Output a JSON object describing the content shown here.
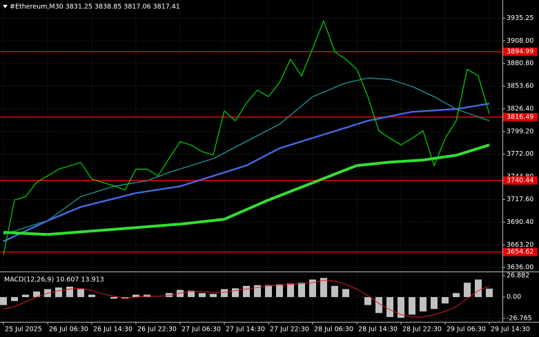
{
  "chart_data": [
    {
      "type": "line",
      "title": "#Ethereum,M30  3831.25 3838.85 3817.06 3817.41",
      "xlim": [
        -1.25,
        180.75
      ],
      "ylim": [
        3632,
        3957
      ],
      "grid": true,
      "yticks": [
        3935.25,
        {
          "value": 3908,
          "label": "3908.00"
        },
        {
          "value": 3880.8,
          "label": "3880.80"
        },
        {
          "value": 3853.6,
          "label": "3853.60"
        },
        {
          "value": 3826.4,
          "label": "3826.40"
        },
        {
          "value": 3799.2,
          "label": "3799.20"
        },
        {
          "value": 3772,
          "label": "3772.00"
        },
        {
          "value": 3744.8,
          "label": "3744.80"
        },
        {
          "value": 3717.6,
          "label": "3717.60"
        },
        {
          "value": 3690.4,
          "label": "3690.40"
        },
        {
          "value": 3663.2,
          "label": "3663.20"
        },
        {
          "value": 3636,
          "label": "3636.00"
        }
      ],
      "levels": [
        3894.99,
        3816.49,
        3740.44,
        3654.62
      ],
      "level_color": "#e00000",
      "series": [
        {
          "kind": "line",
          "color": "#1f8a8a",
          "width": 1.5,
          "x": [
            0,
            16,
            28,
            40,
            52,
            60,
            76,
            88,
            100,
            112,
            124,
            132,
            140,
            148,
            156,
            164,
            176
          ],
          "values": [
            3675.7,
            3692.2,
            3721.1,
            3733.5,
            3740.1,
            3750.1,
            3766.6,
            3787.3,
            3807.9,
            3841,
            3857.5,
            3863.3,
            3861.7,
            3853.4,
            3841,
            3826.1,
            3812.1
          ]
        },
        {
          "kind": "line",
          "color": "#4169e1",
          "width": 2.5,
          "x": [
            0,
            16,
            28,
            48,
            64,
            80,
            88,
            100,
            112,
            124,
            132,
            148,
            164,
            176
          ],
          "values": [
            3667.4,
            3692.2,
            3708.7,
            3725.3,
            3733.5,
            3750.1,
            3758.4,
            3779,
            3791.4,
            3803.8,
            3812.1,
            3822.8,
            3826.1,
            3832.7
          ]
        },
        {
          "kind": "line",
          "color": "#32e032",
          "width": 4,
          "x": [
            0,
            16,
            32,
            48,
            64,
            80,
            96,
            112,
            128,
            140,
            152,
            164,
            176
          ],
          "values": [
            3678.2,
            3675.7,
            3679.8,
            3683.9,
            3688.1,
            3693.9,
            3717,
            3737.7,
            3758.4,
            3762.5,
            3765,
            3770.7,
            3783.1
          ]
        },
        {
          "kind": "line",
          "color": "#00dd00",
          "width": 1.2,
          "x": [
            0,
            4,
            8,
            12,
            16,
            20,
            24,
            28,
            32,
            36,
            40,
            44,
            48,
            52,
            56,
            60,
            64,
            68,
            72,
            76,
            80,
            84,
            88,
            92,
            96,
            100,
            104,
            108,
            112,
            116,
            120,
            124,
            128,
            132,
            136,
            140,
            144,
            148,
            152,
            156,
            160,
            164,
            168,
            172,
            176
          ],
          "values": [
            3651,
            3717,
            3721,
            3738,
            3746,
            3754,
            3758,
            3762,
            3742,
            3738,
            3734,
            3729,
            3754,
            3754,
            3746,
            3767,
            3787,
            3783,
            3775,
            3771,
            3824,
            3812,
            3833,
            3849,
            3841,
            3858,
            3886,
            3866,
            3899,
            3932,
            3895,
            3886,
            3874,
            3841,
            3800,
            3791,
            3783,
            3791,
            3800,
            3758,
            3791,
            3812,
            3874,
            3866,
            3820
          ]
        }
      ]
    },
    {
      "type": "macd",
      "title": "MACD(12,26,9) 10.607 13.913",
      "xlim": [
        -1.25,
        180.75
      ],
      "ylim": [
        -30.2,
        30.3
      ],
      "grid": true,
      "yticks": [
        26.882,
        {
          "value": 0,
          "label": "0.00"
        },
        -26.765
      ],
      "xticks": [
        {
          "value": 0,
          "label": "25 Jul 2025"
        },
        {
          "value": 16,
          "label": "26 Jul 06:30"
        },
        {
          "value": 32,
          "label": "26 Jul 14:30"
        },
        {
          "value": 48,
          "label": "26 Jul 22:30"
        },
        {
          "value": 64,
          "label": "27 Jul 06:30"
        },
        {
          "value": 80,
          "label": "27 Jul 14:30"
        },
        {
          "value": 96,
          "label": "27 Jul 22:30"
        },
        {
          "value": 112,
          "label": "28 Jul 06:30"
        },
        {
          "value": 128,
          "label": "28 Jul 14:30"
        },
        {
          "value": 144,
          "label": "28 Jul 22:30"
        },
        {
          "value": 160,
          "label": "29 Jul 06:30"
        },
        {
          "value": 176,
          "label": "29 Jul 14:30"
        }
      ],
      "series": [
        {
          "kind": "bar",
          "color": "#c0c0c0",
          "x": [
            0,
            4,
            8,
            12,
            16,
            20,
            24,
            28,
            32,
            36,
            40,
            44,
            48,
            52,
            56,
            60,
            64,
            68,
            72,
            76,
            80,
            84,
            88,
            92,
            96,
            100,
            104,
            108,
            112,
            116,
            120,
            124,
            128,
            132,
            136,
            140,
            144,
            148,
            152,
            156,
            160,
            164,
            168,
            172,
            176
          ],
          "values": [
            -10,
            -5,
            3,
            7,
            10,
            12,
            13,
            10,
            3,
            0,
            -2,
            -2,
            3,
            3,
            0,
            5,
            9,
            8,
            5,
            4,
            10,
            11,
            14,
            15,
            15,
            16,
            17,
            18,
            22,
            24,
            14,
            10,
            0,
            -10,
            -20,
            -25,
            -26,
            -22,
            -18,
            -15,
            -8,
            5,
            18,
            22,
            10.6
          ]
        },
        {
          "kind": "line",
          "color": "#e02020",
          "width": 1,
          "x": [
            0,
            4,
            8,
            12,
            16,
            20,
            24,
            28,
            32,
            36,
            40,
            44,
            48,
            52,
            56,
            60,
            64,
            68,
            72,
            76,
            80,
            84,
            88,
            92,
            96,
            100,
            104,
            108,
            112,
            116,
            120,
            124,
            128,
            132,
            136,
            140,
            144,
            148,
            152,
            156,
            160,
            164,
            168,
            172,
            176
          ],
          "values": [
            -15,
            -12,
            -6,
            0,
            5,
            8,
            10,
            11,
            8,
            4,
            1,
            -1,
            0,
            1,
            1,
            2,
            5,
            7,
            7,
            6,
            6,
            8,
            10,
            12,
            14,
            15,
            16,
            17,
            18,
            21,
            20,
            16,
            10,
            2,
            -8,
            -16,
            -22,
            -25,
            -25,
            -22,
            -18,
            -12,
            -2,
            8,
            13.9
          ]
        }
      ]
    }
  ]
}
